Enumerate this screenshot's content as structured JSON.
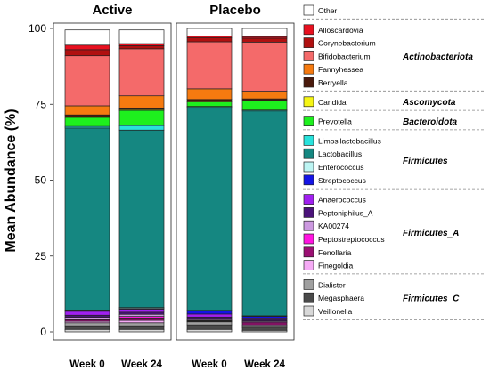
{
  "chart_data": {
    "type": "bar",
    "stacked": true,
    "ylabel": "Mean Abundance (%)",
    "ylim": [
      0,
      100
    ],
    "yticks": [
      0,
      25,
      50,
      75,
      100
    ],
    "groups": [
      {
        "title": "Active",
        "categories": [
          "Week 0",
          "Week 24"
        ]
      },
      {
        "title": "Placebo",
        "categories": [
          "Week 0",
          "Week 24"
        ]
      }
    ],
    "legend": [
      {
        "phylum": "",
        "taxa": [
          {
            "name": "Other",
            "color": "#ffffff"
          }
        ]
      },
      {
        "phylum": "Actinobacteriota",
        "taxa": [
          {
            "name": "Alloscardovia",
            "color": "#e8101f"
          },
          {
            "name": "Corynebacterium",
            "color": "#b01010"
          },
          {
            "name": "Bifidobacterium",
            "color": "#f46a6a"
          },
          {
            "name": "Fannyhessea",
            "color": "#f57a10"
          },
          {
            "name": "Berryella",
            "color": "#4a1a0c"
          }
        ]
      },
      {
        "phylum": "Ascomycota",
        "taxa": [
          {
            "name": "Candida",
            "color": "#f5f514"
          }
        ]
      },
      {
        "phylum": "Bacteroidota",
        "taxa": [
          {
            "name": "Prevotella",
            "color": "#1ef01e"
          }
        ]
      },
      {
        "phylum": "Firmicutes",
        "taxa": [
          {
            "name": "Limosilactobacillus",
            "color": "#28e2dc"
          },
          {
            "name": "Lactobacillus",
            "color": "#158781"
          },
          {
            "name": "Enterococcus",
            "color": "#bdf5f3"
          },
          {
            "name": "Streptococcus",
            "color": "#1414e6"
          }
        ]
      },
      {
        "phylum": "Firmicutes_A",
        "taxa": [
          {
            "name": "Anaerococcus",
            "color": "#a020f0"
          },
          {
            "name": "Peptoniphilus_A",
            "color": "#4b137a"
          },
          {
            "name": "KA00274",
            "color": "#cc99e0"
          },
          {
            "name": "Peptostreptococcus",
            "color": "#ff14e0"
          },
          {
            "name": "Fenollaria",
            "color": "#9b0f73"
          },
          {
            "name": "Finegoldia",
            "color": "#f5aaf5"
          }
        ]
      },
      {
        "phylum": "Firmicutes_C",
        "taxa": [
          {
            "name": "Dialister",
            "color": "#a0a0a0"
          },
          {
            "name": "Megasphaera",
            "color": "#4a4a4a"
          },
          {
            "name": "Veillonella",
            "color": "#d8d8d8"
          }
        ]
      }
    ],
    "stack_order": [
      "Veillonella",
      "Megasphaera",
      "Dialister",
      "Finegoldia",
      "Fenollaria",
      "Peptostreptococcus",
      "KA00274",
      "Peptoniphilus_A",
      "Anaerococcus",
      "Streptococcus",
      "Enterococcus",
      "Lactobacillus",
      "Limosilactobacillus",
      "Prevotella",
      "Candida",
      "Berryella",
      "Fannyhessea",
      "Bifidobacterium",
      "Corynebacterium",
      "Alloscardovia",
      "Other"
    ],
    "series": [
      {
        "name": "Active Week 0",
        "values": {
          "Veillonella": 0.8,
          "Megasphaera": 1.2,
          "Dialister": 1.0,
          "Finegoldia": 0.5,
          "Fenollaria": 0.5,
          "Peptostreptococcus": 0.3,
          "KA00274": 0.5,
          "Peptoniphilus_A": 0.7,
          "Anaerococcus": 1.3,
          "Streptococcus": 0.2,
          "Enterococcus": 0.2,
          "Lactobacillus": 60.0,
          "Limosilactobacillus": 0.5,
          "Prevotella": 3.0,
          "Candida": 0.2,
          "Berryella": 0.6,
          "Fannyhessea": 3.0,
          "Bifidobacterium": 16.5,
          "Corynebacterium": 2.0,
          "Alloscardovia": 1.5,
          "Other": 5.0
        }
      },
      {
        "name": "Active Week 24",
        "values": {
          "Veillonella": 0.8,
          "Megasphaera": 1.2,
          "Dialister": 1.0,
          "Finegoldia": 0.8,
          "Fenollaria": 0.8,
          "Peptostreptococcus": 0.5,
          "KA00274": 0.7,
          "Peptoniphilus_A": 0.7,
          "Anaerococcus": 1.0,
          "Streptococcus": 0.2,
          "Enterococcus": 0.3,
          "Lactobacillus": 58.5,
          "Limosilactobacillus": 1.5,
          "Prevotella": 5.0,
          "Candida": 0.3,
          "Berryella": 0.5,
          "Fannyhessea": 4.0,
          "Bifidobacterium": 15.5,
          "Corynebacterium": 1.0,
          "Alloscardovia": 0.7,
          "Other": 4.5
        }
      },
      {
        "name": "Placebo Week 0",
        "values": {
          "Veillonella": 0.8,
          "Megasphaera": 1.5,
          "Dialister": 1.0,
          "Finegoldia": 0.2,
          "Fenollaria": 0.2,
          "Peptostreptococcus": 0.2,
          "KA00274": 0.5,
          "Peptoniphilus_A": 0.5,
          "Anaerococcus": 1.0,
          "Streptococcus": 1.0,
          "Enterococcus": 0.2,
          "Lactobacillus": 66.9,
          "Limosilactobacillus": 0.3,
          "Prevotella": 1.5,
          "Candida": 0.3,
          "Berryella": 0.5,
          "Fannyhessea": 3.5,
          "Bifidobacterium": 15.5,
          "Corynebacterium": 1.4,
          "Alloscardovia": 0.5,
          "Other": 2.5
        }
      },
      {
        "name": "Placebo Week 24",
        "values": {
          "Veillonella": 0.5,
          "Megasphaera": 0.8,
          "Dialister": 0.7,
          "Finegoldia": 0.3,
          "Fenollaria": 0.7,
          "Peptostreptococcus": 0.3,
          "KA00274": 0.3,
          "Peptoniphilus_A": 0.5,
          "Anaerococcus": 0.5,
          "Streptococcus": 0.5,
          "Enterococcus": 0.2,
          "Lactobacillus": 67.5,
          "Limosilactobacillus": 0.3,
          "Prevotella": 3.0,
          "Candida": 0.2,
          "Berryella": 0.5,
          "Fannyhessea": 2.5,
          "Bifidobacterium": 16.2,
          "Corynebacterium": 1.3,
          "Alloscardovia": 0.5,
          "Other": 2.7
        }
      }
    ]
  }
}
